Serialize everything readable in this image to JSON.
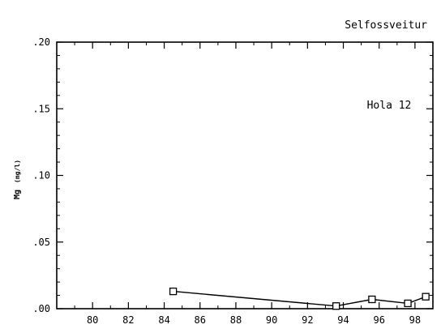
{
  "chart_data": {
    "type": "line",
    "title": "Selfossveitur",
    "annotation": "Hola 12",
    "ylabel": "Mg",
    "ylabel_unit": "(mg/l)",
    "xlim": [
      78,
      99
    ],
    "ylim": [
      0,
      0.2
    ],
    "x_ticks": [
      80,
      82,
      84,
      86,
      88,
      90,
      92,
      94,
      96,
      98
    ],
    "x_tick_labels": [
      "80",
      "82",
      "84",
      "86",
      "88",
      "90",
      "92",
      "94",
      "96",
      "98"
    ],
    "y_ticks": [
      0,
      0.05,
      0.1,
      0.15,
      0.2
    ],
    "y_tick_labels": [
      ".00",
      ".05",
      ".10",
      ".15",
      ".20"
    ],
    "grid": false,
    "marker": "square",
    "series": [
      {
        "x": [
          84.5,
          93.6,
          95.6,
          97.6,
          98.6
        ],
        "y": [
          0.013,
          0.002,
          0.007,
          0.004,
          0.009
        ]
      }
    ]
  }
}
